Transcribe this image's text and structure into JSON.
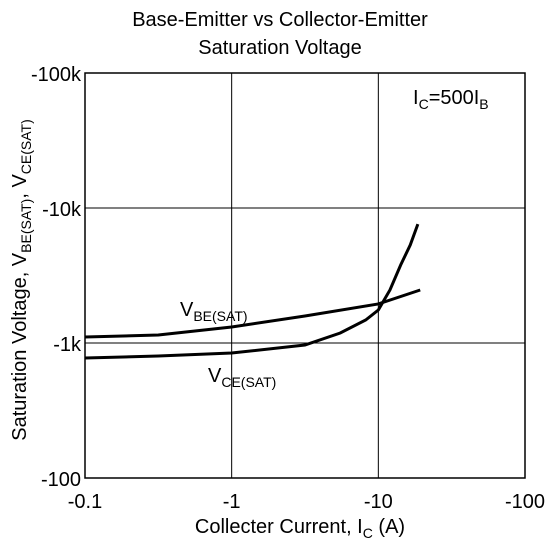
{
  "chart_data": {
    "type": "line",
    "title": [
      "Base-Emitter vs Collector-Emitter",
      "Saturation Voltage"
    ],
    "xlabel": [
      "Collecter Current, I",
      "C",
      " (A)"
    ],
    "ylabel": [
      "Saturation Voltage, V",
      "BE(SAT)",
      ", V",
      "CE(SAT)"
    ],
    "annotation": [
      "I",
      "C",
      "=500I",
      "B"
    ],
    "xscale": "log",
    "yscale": "log",
    "grid": true,
    "color": "#000000",
    "xlim": [
      -0.1,
      -100
    ],
    "xticks": [
      -0.1,
      -1,
      -10,
      -100
    ],
    "ylim": [
      -100,
      -100000
    ],
    "yticks": [
      {
        "value": -100000,
        "label": "-100k"
      },
      {
        "value": -10000,
        "label": "-10k"
      },
      {
        "value": -1000,
        "label": "-1k"
      },
      -100
    ],
    "series": [
      {
        "name": [
          "V",
          "BE(SAT)"
        ],
        "x": [
          -0.1,
          -0.316,
          -1,
          -3.16,
          -10,
          -19.3
        ],
        "values": [
          -1107,
          -1146,
          -1313,
          -1585,
          -1946,
          -2470
        ]
      },
      {
        "name": [
          "V",
          "CE(SAT)"
        ],
        "x": [
          -0.1,
          -0.316,
          -1,
          -3.16,
          -5.5,
          -8.2,
          -10,
          -12,
          -14.2,
          -16.5,
          -18.6
        ],
        "values": [
          -774,
          -801,
          -843,
          -966,
          -1186,
          -1480,
          -1756,
          -2470,
          -3780,
          -5320,
          -7600
        ]
      }
    ]
  }
}
